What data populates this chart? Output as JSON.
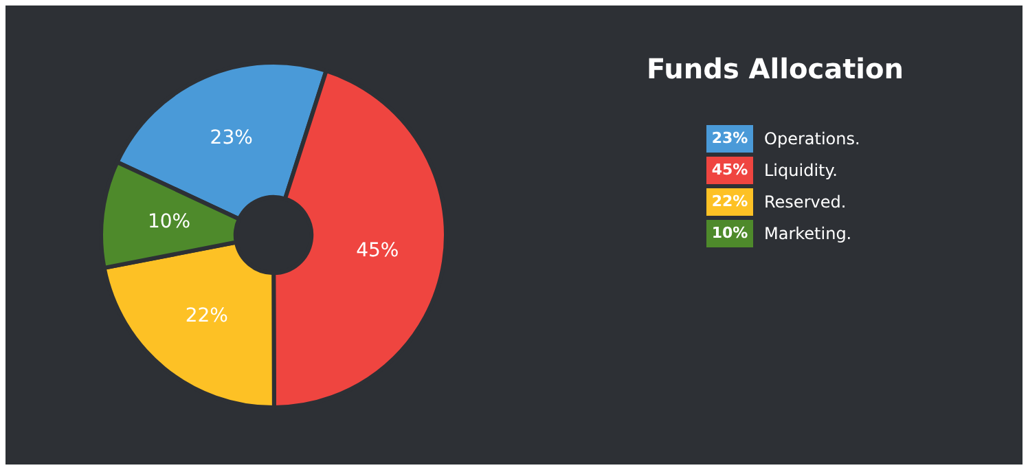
{
  "chart_data": {
    "type": "donut",
    "title": "Funds Allocation",
    "categories": [
      "Operations.",
      "Liquidity.",
      "Reserved.",
      "Marketing."
    ],
    "values": [
      23,
      45,
      22,
      10
    ],
    "colors": [
      "#4a9ad8",
      "#ef4540",
      "#fdc125",
      "#4e8a2b"
    ],
    "value_labels": [
      "23%",
      "45%",
      "22%",
      "10%"
    ],
    "legend": "right"
  }
}
